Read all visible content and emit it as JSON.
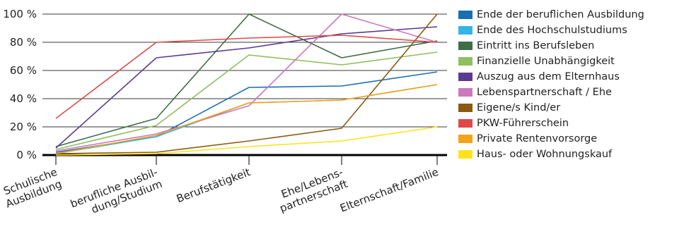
{
  "chart_data": {
    "type": "line",
    "title": "",
    "xlabel": "",
    "ylabel": "",
    "ylim": [
      0,
      100
    ],
    "yticks": [
      "0 %",
      "20 %",
      "40 %",
      "60 %",
      "80 %",
      "100 %"
    ],
    "grid": true,
    "legend_position": "right",
    "categories": [
      [
        "Schulische",
        "Ausbildung"
      ],
      [
        "berufliche Ausbil-",
        "dung/Studium"
      ],
      [
        "Berufstätigkeit"
      ],
      [
        "Ehe/Lebens-",
        "partnerschaft"
      ],
      [
        "Elternschaft/Familie"
      ]
    ],
    "series": [
      {
        "name": "Ende der beruflichen Ausbildung",
        "color": "#1a6fb0",
        "values": [
          2,
          13,
          48,
          49,
          59
        ]
      },
      {
        "name": "Ende des Hochschulstudiums",
        "color": "#33b5e5",
        "values": [
          1,
          13,
          37,
          39,
          50
        ]
      },
      {
        "name": "Eintritt ins Berufsleben",
        "color": "#3f6e45",
        "values": [
          6,
          26,
          100,
          69,
          81
        ]
      },
      {
        "name": "Finanzielle Unabhängigkeit",
        "color": "#8fbf5f",
        "values": [
          4,
          21,
          71,
          64,
          73
        ]
      },
      {
        "name": "Auszug aus dem Elternhaus",
        "color": "#5b3a91",
        "values": [
          5,
          69,
          76,
          86,
          91
        ]
      },
      {
        "name": "Lebenspartnerschaft / Ehe",
        "color": "#cc78bd",
        "values": [
          3,
          15,
          35,
          100,
          80
        ]
      },
      {
        "name": "Eigene/s Kind/er",
        "color": "#8a5a12",
        "values": [
          1,
          2,
          10,
          19,
          100
        ]
      },
      {
        "name": "PKW-Führerschein",
        "color": "#e04848",
        "values": [
          26,
          80,
          83,
          85,
          80
        ]
      },
      {
        "name": "Private Rentenvorsorge",
        "color": "#f5a316",
        "values": [
          1,
          14,
          37,
          39,
          50
        ]
      },
      {
        "name": "Haus- oder Wohnungskauf",
        "color": "#ffe31a",
        "values": [
          0,
          1,
          6,
          10,
          20
        ]
      }
    ]
  }
}
